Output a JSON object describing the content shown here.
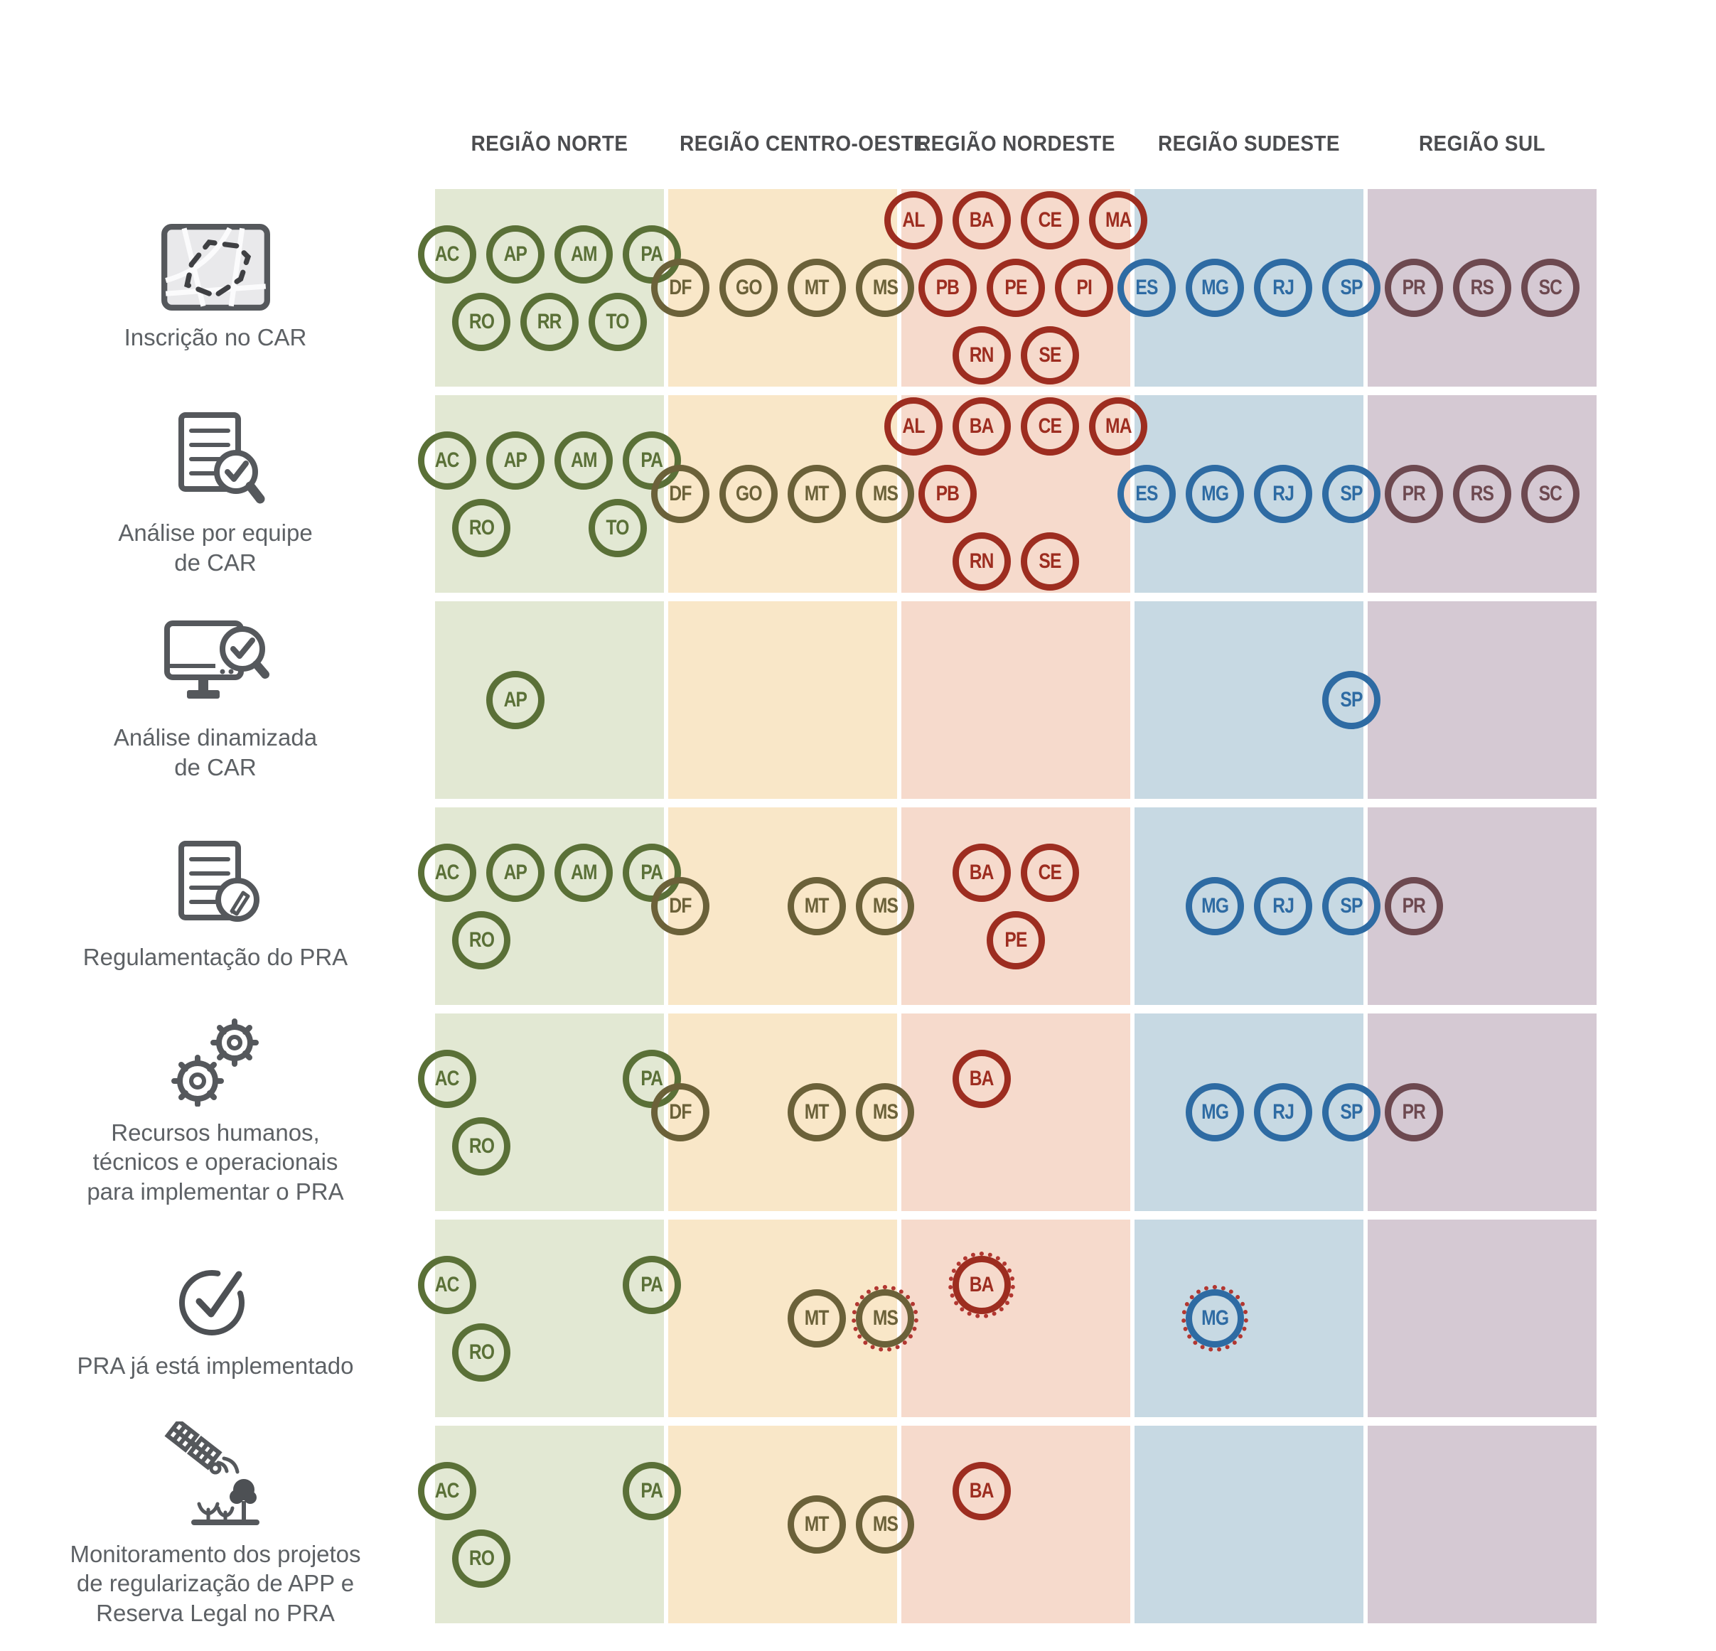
{
  "header": {
    "columns": [
      {
        "id": "norte",
        "label": "REGIÃO NORTE"
      },
      {
        "id": "centro_oeste",
        "label": "REGIÃO CENTRO-OESTE"
      },
      {
        "id": "nordeste",
        "label": "REGIÃO NORDESTE"
      },
      {
        "id": "sudeste",
        "label": "REGIÃO SUDESTE"
      },
      {
        "id": "sul",
        "label": "REGIÃO SUL"
      }
    ]
  },
  "regions": {
    "norte": {
      "bg": "#e2e8d3",
      "accent": "#5a7037"
    },
    "centro_oeste": {
      "bg": "#f9e7c8",
      "accent": "#6b6139"
    },
    "nordeste": {
      "bg": "#f6dacc",
      "accent": "#9d2d20"
    },
    "sudeste": {
      "bg": "#c7d9e3",
      "accent": "#2e6ba3"
    },
    "sul": {
      "bg": "#d5c9d3",
      "accent": "#6d4950"
    }
  },
  "dotted_ring_color": "#b23731",
  "text_colors": {
    "header": "#4b4c4f",
    "row_label": "#5d6165",
    "icon_stroke": "#55585c"
  },
  "rows": [
    {
      "id": "inscricao-car",
      "icon": "map-icon",
      "label": "Inscrição no CAR",
      "cells": {
        "norte": [
          [
            "AC",
            "AP",
            "AM",
            "PA"
          ],
          [
            "RO",
            "RR",
            "TO"
          ]
        ],
        "centro_oeste": [
          [
            "DF",
            "GO",
            "MT",
            "MS"
          ]
        ],
        "nordeste": [
          [
            "AL",
            "BA",
            "CE",
            "MA"
          ],
          [
            "PB",
            "PE",
            "PI"
          ],
          [
            "RN",
            "SE"
          ]
        ],
        "sudeste": [
          [
            "ES",
            "MG",
            "RJ",
            "SP"
          ]
        ],
        "sul": [
          [
            "PR",
            "RS",
            "SC"
          ]
        ]
      }
    },
    {
      "id": "analise-equipe-car",
      "icon": "document-search-icon",
      "label": "Análise por equipe\nde CAR",
      "cells": {
        "norte": [
          [
            "AC",
            "AP",
            "AM",
            "PA"
          ],
          [
            "RO",
            null,
            "TO"
          ]
        ],
        "centro_oeste": [
          [
            "DF",
            "GO",
            "MT",
            "MS"
          ]
        ],
        "nordeste": [
          [
            "AL",
            "BA",
            "CE",
            "MA"
          ],
          [
            "PB",
            null,
            null
          ],
          [
            "RN",
            "SE"
          ]
        ],
        "sudeste": [
          [
            "ES",
            "MG",
            "RJ",
            "SP"
          ]
        ],
        "sul": [
          [
            "PR",
            "RS",
            "SC"
          ]
        ]
      }
    },
    {
      "id": "analise-dinamizada-car",
      "icon": "monitor-search-icon",
      "label": "Análise dinamizada\nde CAR",
      "cells": {
        "norte": [
          [
            null,
            "AP",
            null,
            null
          ]
        ],
        "centro_oeste": [],
        "nordeste": [],
        "sudeste": [
          [
            null,
            null,
            null,
            "SP"
          ]
        ],
        "sul": []
      }
    },
    {
      "id": "regulamentacao-pra",
      "icon": "document-edit-icon",
      "label": "Regulamentação do PRA",
      "cells": {
        "norte": [
          [
            "AC",
            "AP",
            "AM",
            "PA"
          ],
          [
            "RO",
            null,
            null
          ]
        ],
        "centro_oeste": [
          [
            "DF",
            null,
            "MT",
            "MS"
          ]
        ],
        "nordeste": [
          [
            null,
            "BA",
            "CE",
            null
          ],
          [
            null,
            "PE",
            null
          ]
        ],
        "sudeste": [
          [
            null,
            "MG",
            "RJ",
            "SP"
          ]
        ],
        "sul": [
          [
            "PR",
            null,
            null
          ]
        ]
      }
    },
    {
      "id": "recursos-pra",
      "icon": "gears-icon",
      "label": "Recursos humanos,\ntécnicos e operacionais\npara implementar o PRA",
      "cells": {
        "norte": [
          [
            "AC",
            null,
            null,
            "PA"
          ],
          [
            "RO",
            null,
            null
          ]
        ],
        "centro_oeste": [
          [
            "DF",
            null,
            "MT",
            "MS"
          ]
        ],
        "nordeste": [
          [
            null,
            "BA",
            null,
            null
          ],
          [
            null,
            null,
            null
          ]
        ],
        "sudeste": [
          [
            null,
            "MG",
            "RJ",
            "SP"
          ]
        ],
        "sul": [
          [
            "PR",
            null,
            null
          ]
        ]
      }
    },
    {
      "id": "pra-implementado",
      "icon": "check-circle-icon",
      "label": "PRA já está implementado",
      "cells": {
        "norte": [
          [
            "AC",
            null,
            null,
            "PA"
          ],
          [
            "RO",
            null,
            null
          ]
        ],
        "centro_oeste": [
          [
            null,
            null,
            "MT",
            "MS:d"
          ]
        ],
        "nordeste": [
          [
            null,
            "BA:d",
            null,
            null
          ],
          [
            null,
            null,
            null
          ]
        ],
        "sudeste": [
          [
            null,
            "MG:d",
            null,
            null
          ]
        ],
        "sul": []
      }
    },
    {
      "id": "monitoramento-pra",
      "icon": "satellite-monitoring-icon",
      "label": "Monitoramento dos projetos\nde regularização de APP e\nReserva Legal no PRA",
      "cells": {
        "norte": [
          [
            "AC",
            null,
            null,
            "PA"
          ],
          [
            "RO",
            null,
            null
          ]
        ],
        "centro_oeste": [
          [
            null,
            null,
            "MT",
            "MS"
          ]
        ],
        "nordeste": [
          [
            null,
            "BA",
            null,
            null
          ],
          [
            null,
            null,
            null
          ]
        ],
        "sudeste": [],
        "sul": []
      }
    }
  ]
}
